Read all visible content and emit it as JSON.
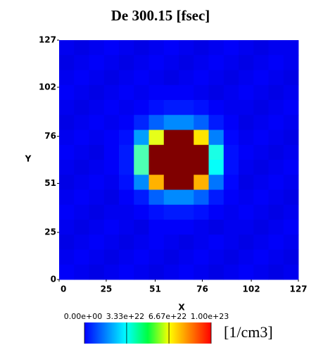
{
  "chart_data": {
    "type": "heatmap",
    "title": "De  300.15 [fsec]",
    "x_label": "X",
    "y_label": "Y",
    "xlim": [
      0,
      127
    ],
    "ylim": [
      0,
      127
    ],
    "xticks": [
      0,
      25,
      51,
      76,
      102,
      127
    ],
    "yticks": [
      0,
      25,
      51,
      76,
      102,
      127
    ],
    "clim": [
      0,
      1e+23
    ],
    "cticks": [
      {
        "value": 0,
        "label": "0.00e+00"
      },
      {
        "value": 3.33e+22,
        "label": "3.33e+22"
      },
      {
        "value": 6.67e+22,
        "label": "6.67e+22"
      },
      {
        "value": 1e+23,
        "label": "1.00e+23"
      }
    ],
    "colorbar_unit": "[1/cm3]",
    "z": [
      [
        1.1e+22,
        1e+22,
        1.1e+22,
        1.2e+22,
        1.1e+22,
        1e+22,
        1.1e+22,
        1.2e+22,
        1.1e+22,
        1e+22,
        1.1e+22,
        1.2e+22,
        1.1e+22,
        1e+22,
        1.1e+22,
        1.1e+22
      ],
      [
        1e+22,
        1.1e+22,
        1.2e+22,
        1.1e+22,
        1e+22,
        1.1e+22,
        1.2e+22,
        1.1e+22,
        1e+22,
        1.1e+22,
        1.2e+22,
        1.1e+22,
        1e+22,
        1.1e+22,
        1.2e+22,
        1.1e+22
      ],
      [
        1.1e+22,
        1.2e+22,
        1.1e+22,
        1e+22,
        1.1e+22,
        1.2e+22,
        1.1e+22,
        1e+22,
        1.1e+22,
        1.2e+22,
        1.1e+22,
        1e+22,
        1.1e+22,
        1.2e+22,
        1.1e+22,
        1e+22
      ],
      [
        1.2e+22,
        1.1e+22,
        1e+22,
        1.1e+22,
        1.2e+22,
        1.1e+22,
        1.2e+22,
        1.2e+22,
        1.2e+22,
        1.1e+22,
        1e+22,
        1.1e+22,
        1.2e+22,
        1.1e+22,
        1e+22,
        1.1e+22
      ],
      [
        1.1e+22,
        1e+22,
        1.1e+22,
        1.2e+22,
        1.1e+22,
        1.2e+22,
        1.4e+22,
        1.5e+22,
        1.5e+22,
        1.4e+22,
        1.2e+22,
        1.1e+22,
        1.1e+22,
        1e+22,
        1.1e+22,
        1.2e+22
      ],
      [
        1e+22,
        1.1e+22,
        1.2e+22,
        1.1e+22,
        1.2e+22,
        1.6e+22,
        2.2e+22,
        2.6e+22,
        2.6e+22,
        2.2e+22,
        1.5e+22,
        1.2e+22,
        1e+22,
        1.1e+22,
        1.2e+22,
        1.1e+22
      ],
      [
        1.1e+22,
        1.2e+22,
        1.1e+22,
        1.2e+22,
        1.4e+22,
        2.8e+22,
        6e+22,
        1.1e+23,
        1.1e+23,
        6.5e+22,
        2.5e+22,
        1.3e+22,
        1.1e+22,
        1.2e+22,
        1.1e+22,
        1e+22
      ],
      [
        1.2e+22,
        1.1e+22,
        1e+22,
        1.2e+22,
        1.5e+22,
        4.5e+22,
        1.2e+23,
        1.3e+23,
        1.3e+23,
        1.2e+23,
        4e+22,
        1.4e+22,
        1.2e+22,
        1.1e+22,
        1e+22,
        1.1e+22
      ],
      [
        1.1e+22,
        1e+22,
        1.1e+22,
        1.2e+22,
        1.5e+22,
        4.5e+22,
        1.2e+23,
        1.3e+23,
        1.3e+23,
        1.2e+23,
        3.8e+22,
        1.4e+22,
        1.1e+22,
        1e+22,
        1.1e+22,
        1.2e+22
      ],
      [
        1e+22,
        1.1e+22,
        1.2e+22,
        1.1e+22,
        1.4e+22,
        2.6e+22,
        7e+22,
        1.1e+23,
        1.1e+23,
        7e+22,
        2.4e+22,
        1.3e+22,
        1e+22,
        1.1e+22,
        1.2e+22,
        1.1e+22
      ],
      [
        1.1e+22,
        1.2e+22,
        1.1e+22,
        1e+22,
        1.2e+22,
        1.5e+22,
        2.2e+22,
        2.6e+22,
        2.6e+22,
        2.2e+22,
        1.5e+22,
        1.2e+22,
        1.1e+22,
        1.2e+22,
        1.1e+22,
        1e+22
      ],
      [
        1.2e+22,
        1.1e+22,
        1e+22,
        1.1e+22,
        1.1e+22,
        1.2e+22,
        1.4e+22,
        1.5e+22,
        1.5e+22,
        1.4e+22,
        1.2e+22,
        1.1e+22,
        1.2e+22,
        1.1e+22,
        1e+22,
        1.1e+22
      ],
      [
        1.1e+22,
        1e+22,
        1.1e+22,
        1.2e+22,
        1.1e+22,
        1e+22,
        1.2e+22,
        1.2e+22,
        1.2e+22,
        1.1e+22,
        1e+22,
        1.1e+22,
        1.1e+22,
        1e+22,
        1.1e+22,
        1.2e+22
      ],
      [
        1e+22,
        1.1e+22,
        1.2e+22,
        1.1e+22,
        1e+22,
        1.1e+22,
        1.2e+22,
        1.1e+22,
        1e+22,
        1.1e+22,
        1.2e+22,
        1.1e+22,
        1e+22,
        1.1e+22,
        1.2e+22,
        1.1e+22
      ],
      [
        1.1e+22,
        1.2e+22,
        1.1e+22,
        1e+22,
        1.1e+22,
        1.2e+22,
        1.1e+22,
        1e+22,
        1.1e+22,
        1.2e+22,
        1.1e+22,
        1e+22,
        1.1e+22,
        1.2e+22,
        1.1e+22,
        1e+22
      ],
      [
        1.2e+22,
        1.1e+22,
        1e+22,
        1.1e+22,
        1.2e+22,
        1.1e+22,
        1e+22,
        1.1e+22,
        1.2e+22,
        1.1e+22,
        1e+22,
        1.1e+22,
        1.2e+22,
        1.1e+22,
        1e+22,
        1.1e+22
      ]
    ]
  }
}
